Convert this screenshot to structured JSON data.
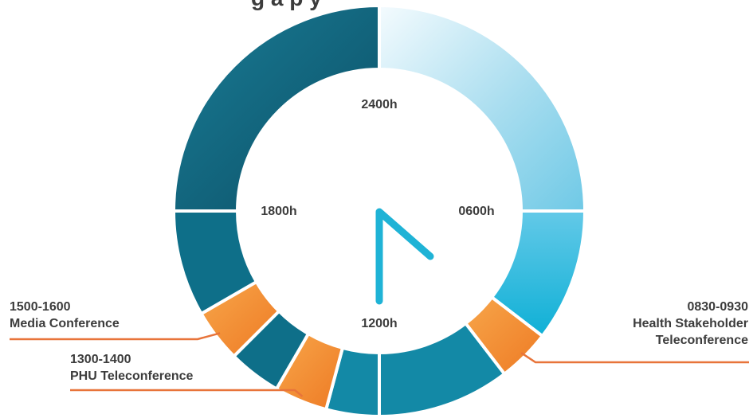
{
  "title_fragment": "g a            p                                          y",
  "hour_labels": {
    "top": "2400h",
    "right": "0600h",
    "bottom": "1200h",
    "left": "1800h"
  },
  "callouts": {
    "morning": {
      "time": "0830-0930",
      "line1": "Health Stakeholder",
      "line2": "Teleconference"
    },
    "media": {
      "time": "1500-1600",
      "line1": "Media Conference"
    },
    "phu": {
      "time": "1300-1400",
      "line1": "PHU Teleconference"
    }
  },
  "colors": {
    "event": "#f08a2c",
    "callout_line": "#e8743a",
    "clock_hand": "#1fb3d6",
    "dark_teal": "#0e6f89",
    "teal": "#1389a6",
    "light_blue": "#8fd3ea",
    "cyan": "#17b3d8"
  }
}
